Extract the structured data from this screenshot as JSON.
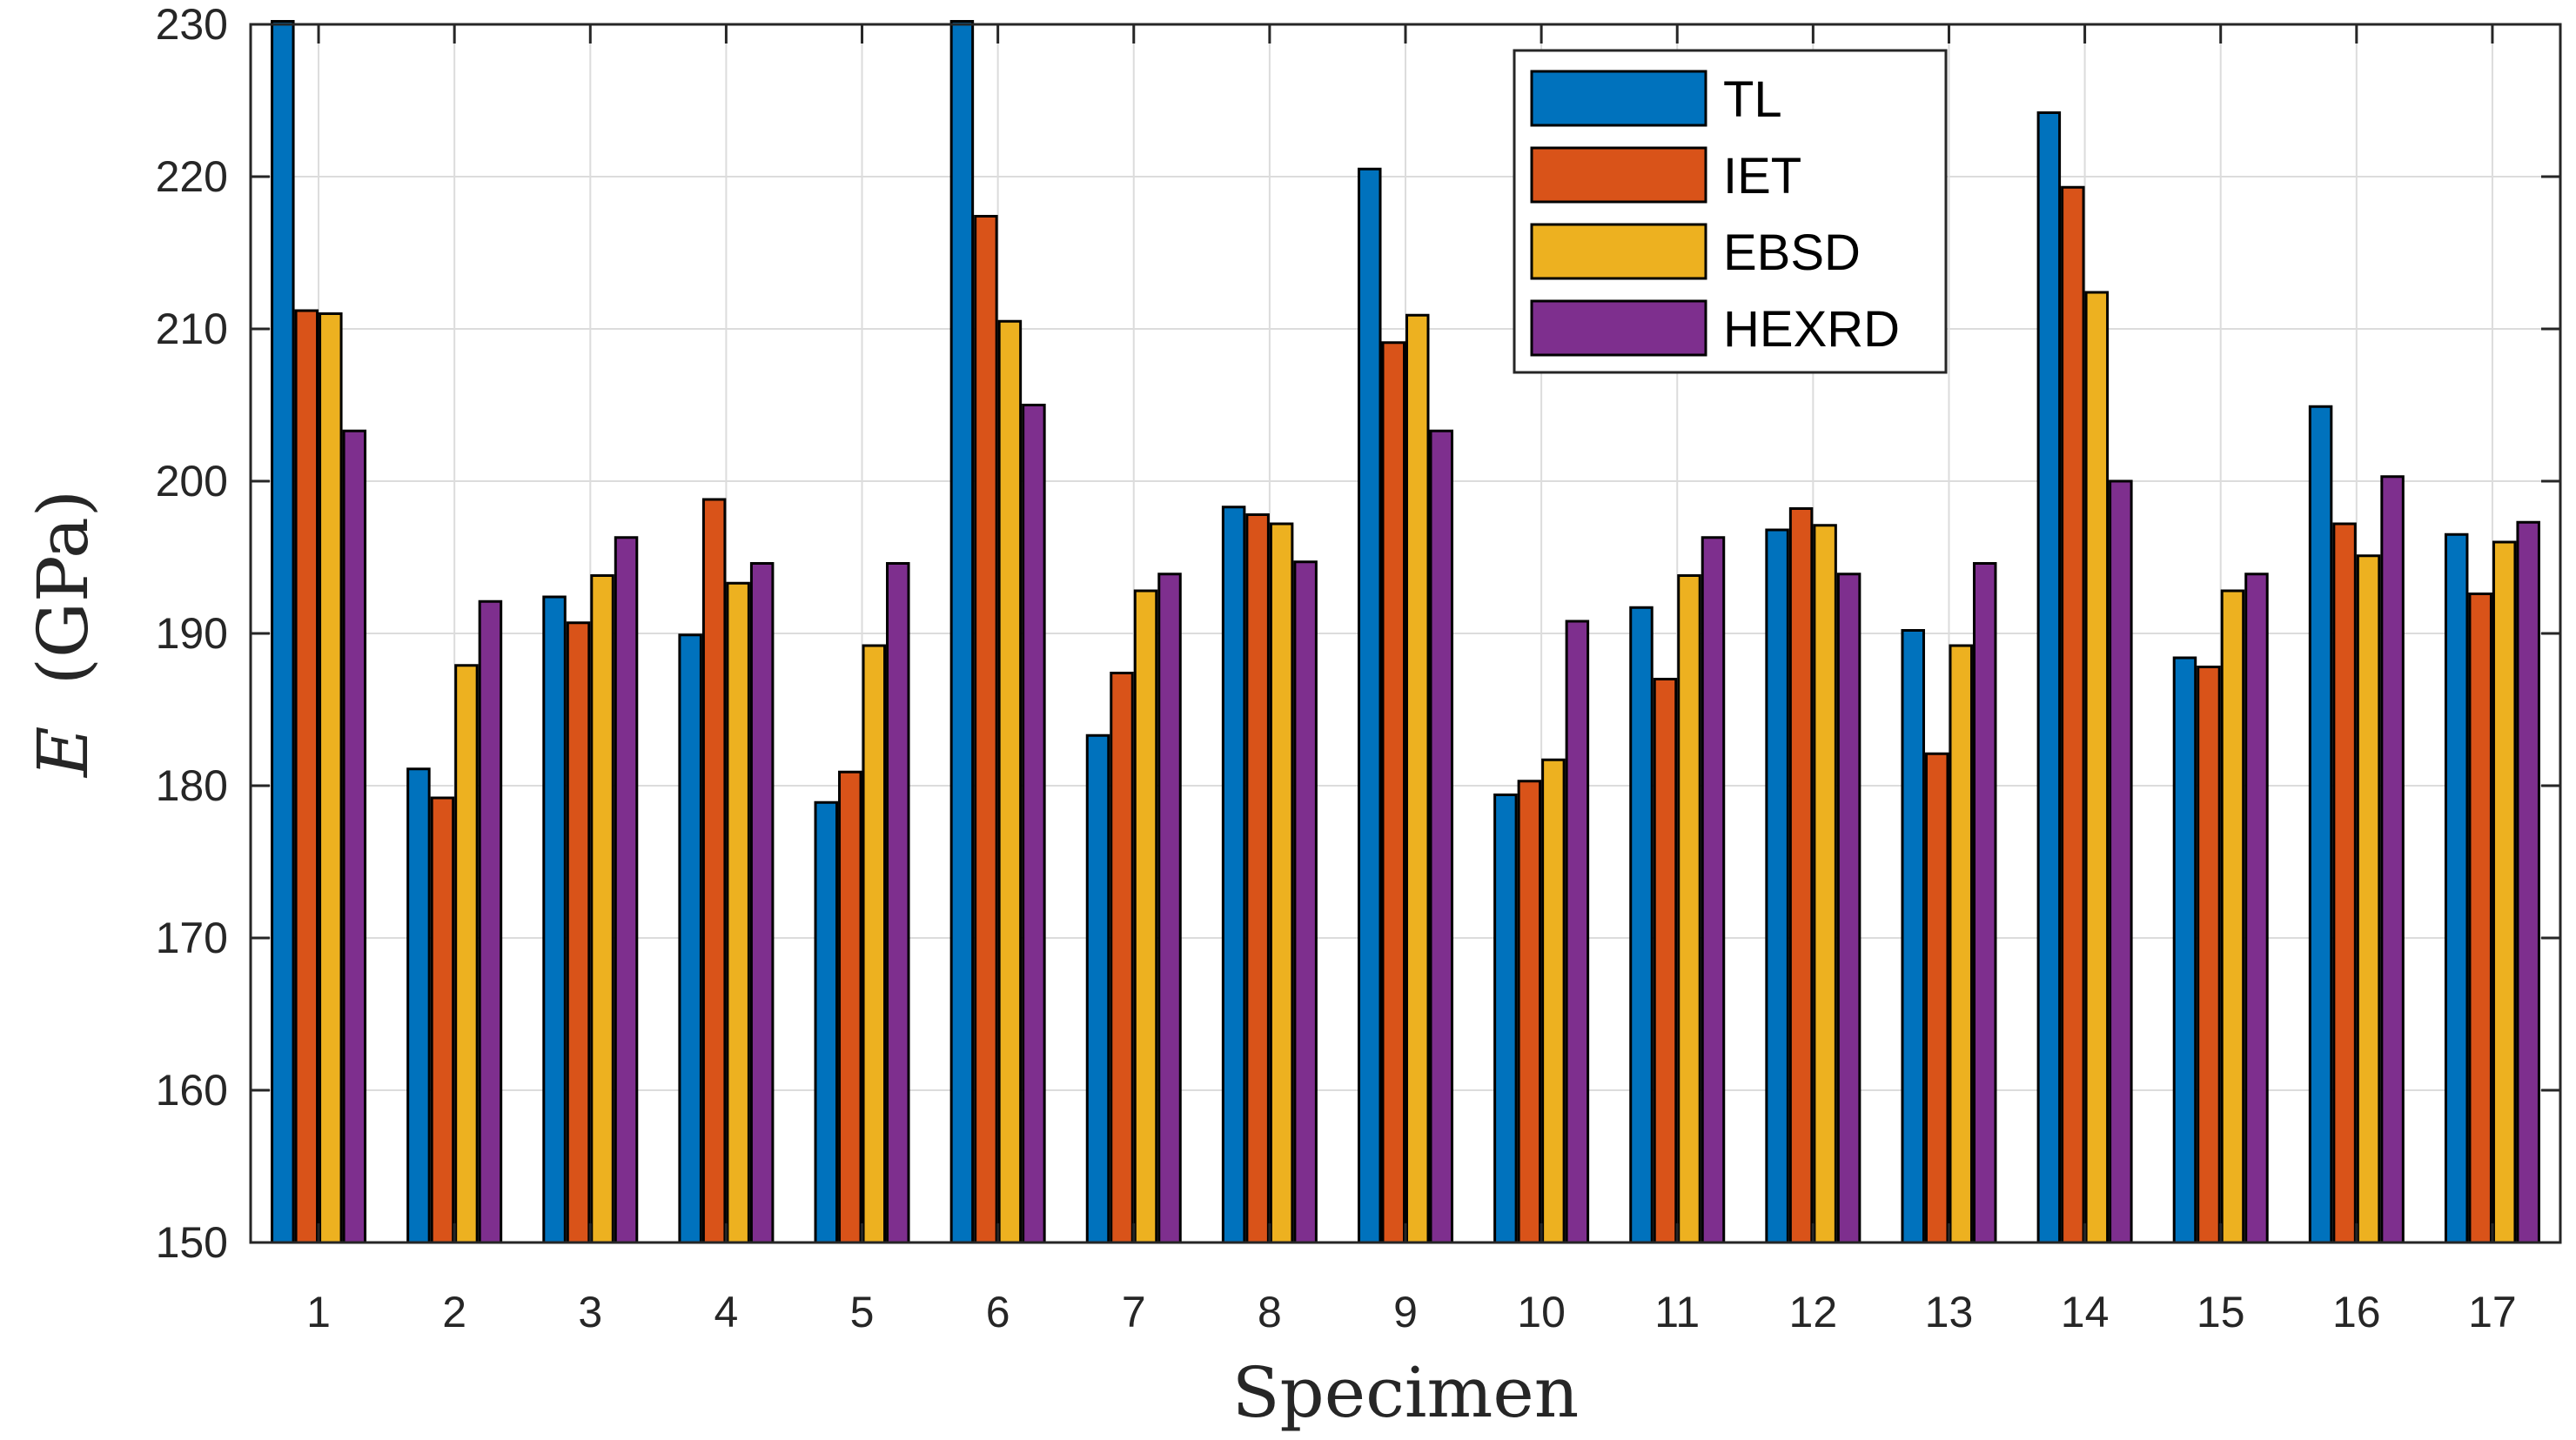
{
  "chart_data": {
    "type": "bar",
    "title": "",
    "xlabel": "Specimen",
    "ylabel_symbol": "E",
    "ylabel_unit": "(GPa)",
    "ylim": [
      150,
      230
    ],
    "yticks": [
      150,
      160,
      170,
      180,
      190,
      200,
      210,
      220,
      230
    ],
    "grid": true,
    "legend_position": "top-center",
    "categories": [
      "1",
      "2",
      "3",
      "4",
      "5",
      "6",
      "7",
      "8",
      "9",
      "10",
      "11",
      "12",
      "13",
      "14",
      "15",
      "16",
      "17"
    ],
    "series": [
      {
        "name": "TL",
        "color": "#0072BD",
        "values": [
          230.2,
          181.1,
          192.4,
          189.9,
          178.9,
          230.2,
          183.3,
          198.3,
          220.5,
          179.4,
          191.7,
          196.8,
          190.2,
          224.2,
          188.4,
          204.9,
          196.5
        ]
      },
      {
        "name": "IET",
        "color": "#D95319",
        "values": [
          211.2,
          179.2,
          190.7,
          198.8,
          180.9,
          217.4,
          187.4,
          197.8,
          209.1,
          180.3,
          187.0,
          198.2,
          182.1,
          219.3,
          187.8,
          197.2,
          192.6
        ]
      },
      {
        "name": "EBSD",
        "color": "#EDB120",
        "values": [
          211.0,
          187.9,
          193.8,
          193.3,
          189.2,
          210.5,
          192.8,
          197.2,
          210.9,
          181.7,
          193.8,
          197.1,
          189.2,
          212.4,
          192.8,
          195.1,
          196.0
        ]
      },
      {
        "name": "HEXRD",
        "color": "#7E2F8E",
        "values": [
          203.3,
          192.1,
          196.3,
          194.6,
          194.6,
          205.0,
          193.9,
          194.7,
          203.3,
          190.8,
          196.3,
          193.9,
          194.6,
          200.0,
          193.9,
          200.3,
          197.3
        ]
      }
    ]
  }
}
